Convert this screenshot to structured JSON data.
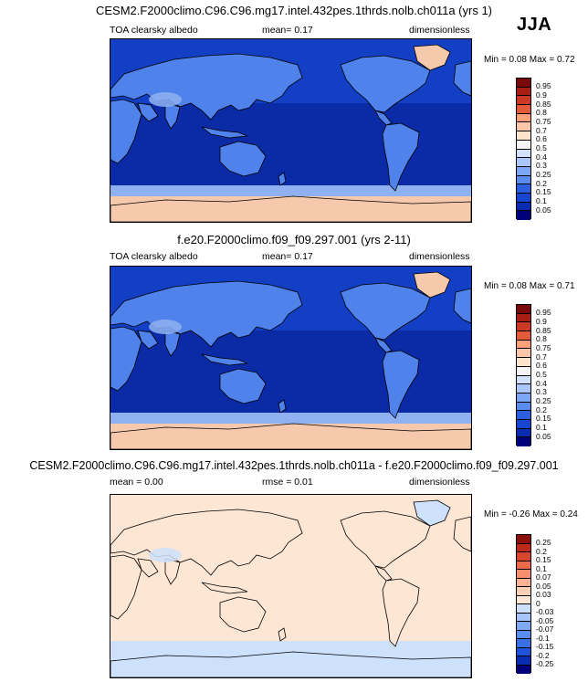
{
  "season": "JJA",
  "colors": {
    "abs_scale": [
      "#00007a",
      "#0a2cb3",
      "#1746d0",
      "#2b5fe0",
      "#3d73e8",
      "#5a8cf0",
      "#7aa6f5",
      "#a9c7f8",
      "#d1e1fb",
      "#f5f5f5",
      "#fde2cc",
      "#fcc7a7",
      "#fa9f78",
      "#f27a55",
      "#e35a3a",
      "#cc3a26",
      "#a81e14",
      "#7a0a0a"
    ],
    "diff_scale": [
      "#00007a",
      "#0a2cb3",
      "#1e52d8",
      "#3a6fe6",
      "#5b8cf0",
      "#7fa8f5",
      "#a7c5f9",
      "#cde0fc",
      "#f5f5f5",
      "#fde6d4",
      "#fcd0b5",
      "#fab294",
      "#f58f6e",
      "#ea6a4a",
      "#d84630",
      "#bd2a1a",
      "#8c0f0a"
    ]
  },
  "panels": [
    {
      "title": "CESM2.F2000climo.C96.C96.mg17.intel.432pes.1thrds.nolb.ch011a (yrs 1)",
      "left_label": "TOA clearsky albedo",
      "center_label": "mean=  0.17",
      "right_label": "dimensionless",
      "minmax": "Min =  0.08 Max =  0.72",
      "ticks": [
        "0.95",
        "0.9",
        "0.85",
        "0.8",
        "0.75",
        "0.7",
        "0.6",
        "0.5",
        "0.4",
        "0.3",
        "0.25",
        "0.2",
        "0.15",
        "0.1",
        "0.05"
      ],
      "ocean_color": "#123fc4",
      "ocean_deep_color": "#0a2aa6",
      "land_color": "#4f82ea",
      "desert_color": "#8fb1f1",
      "ice_color": "#f6c9ad"
    },
    {
      "title": "f.e20.F2000climo.f09_f09.297.001 (yrs 2-11)",
      "left_label": "TOA clearsky albedo",
      "center_label": "mean=  0.17",
      "right_label": "dimensionless",
      "minmax": "Min =  0.08 Max =  0.71",
      "ticks": [
        "0.95",
        "0.9",
        "0.85",
        "0.8",
        "0.75",
        "0.7",
        "0.6",
        "0.5",
        "0.4",
        "0.3",
        "0.25",
        "0.2",
        "0.15",
        "0.1",
        "0.05"
      ],
      "ocean_color": "#123fc4",
      "ocean_deep_color": "#0a2aa6",
      "land_color": "#4f82ea",
      "desert_color": "#8fb1f1",
      "ice_color": "#f6c9ad"
    },
    {
      "title": "CESM2.F2000climo.C96.C96.mg17.intel.432pes.1thrds.nolb.ch011a - f.e20.F2000climo.f09_f09.297.001",
      "left_label": "mean =  0.00",
      "center_label": "rmse =  0.01",
      "right_label": "dimensionless",
      "minmax": "Min =  -0.26 Max =  0.24",
      "ticks": [
        "0.25",
        "0.2",
        "0.15",
        "0.1",
        "0.07",
        "0.05",
        "0.03",
        "0",
        "-0.03",
        "-0.05",
        "-0.07",
        "-0.1",
        "-0.15",
        "-0.2",
        "-0.25"
      ],
      "ocean_color": "#fde6d4",
      "ocean_deep_color": "#fde6d4",
      "land_color": "#fde6d4",
      "desert_color": "#cde0fc",
      "ice_color": "#cde0fc"
    }
  ]
}
